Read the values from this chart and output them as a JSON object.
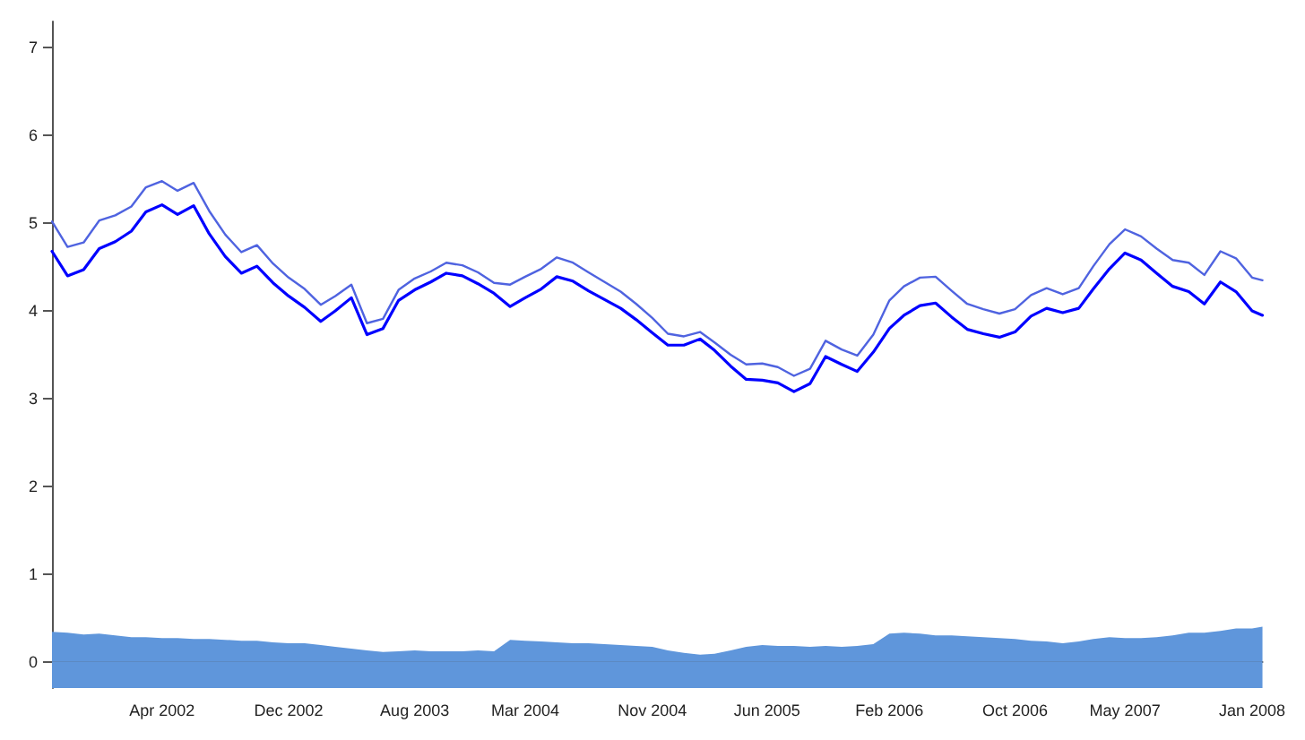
{
  "chart_data": {
    "type": "line",
    "x": [
      "2001-09-01",
      "2001-10-01",
      "2001-11-01",
      "2001-12-01",
      "2002-01-01",
      "2002-02-01",
      "2002-03-01",
      "2002-04-01",
      "2002-05-01",
      "2002-06-01",
      "2002-07-01",
      "2002-08-01",
      "2002-09-01",
      "2002-10-01",
      "2002-11-01",
      "2002-12-01",
      "2003-01-01",
      "2003-02-01",
      "2003-03-01",
      "2003-04-01",
      "2003-05-01",
      "2003-06-01",
      "2003-07-01",
      "2003-08-01",
      "2003-09-01",
      "2003-10-01",
      "2003-11-01",
      "2003-12-01",
      "2004-01-01",
      "2004-02-01",
      "2004-03-01",
      "2004-04-01",
      "2004-05-01",
      "2004-06-01",
      "2004-07-01",
      "2004-08-01",
      "2004-09-01",
      "2004-10-01",
      "2004-11-01",
      "2004-12-01",
      "2005-01-01",
      "2005-02-01",
      "2005-03-01",
      "2005-04-01",
      "2005-05-01",
      "2005-06-01",
      "2005-07-01",
      "2005-08-01",
      "2005-09-01",
      "2005-10-01",
      "2005-11-01",
      "2005-12-01",
      "2006-01-01",
      "2006-02-01",
      "2006-03-01",
      "2006-04-01",
      "2006-05-01",
      "2006-06-01",
      "2006-07-01",
      "2006-08-01",
      "2006-09-01",
      "2006-10-01",
      "2006-11-01",
      "2006-12-01",
      "2007-01-01",
      "2007-02-01",
      "2007-03-01",
      "2007-04-01",
      "2007-05-01",
      "2007-06-01",
      "2007-07-01",
      "2007-08-01",
      "2007-09-01",
      "2007-10-01",
      "2007-11-01",
      "2007-12-01",
      "2008-01-01",
      "2008-01-21"
    ],
    "series": [
      {
        "type": "area",
        "color": "#5f96db",
        "values": [
          0.34,
          0.33,
          0.31,
          0.32,
          0.3,
          0.28,
          0.28,
          0.27,
          0.27,
          0.26,
          0.26,
          0.25,
          0.24,
          0.24,
          0.22,
          0.21,
          0.21,
          0.19,
          0.17,
          0.15,
          0.13,
          0.11,
          0.12,
          0.13,
          0.12,
          0.12,
          0.12,
          0.13,
          0.12,
          0.25,
          0.24,
          0.23,
          0.22,
          0.21,
          0.21,
          0.2,
          0.19,
          0.18,
          0.17,
          0.13,
          0.1,
          0.08,
          0.09,
          0.13,
          0.17,
          0.19,
          0.18,
          0.18,
          0.17,
          0.18,
          0.17,
          0.18,
          0.2,
          0.32,
          0.33,
          0.32,
          0.3,
          0.3,
          0.29,
          0.28,
          0.27,
          0.26,
          0.24,
          0.23,
          0.21,
          0.23,
          0.26,
          0.28,
          0.27,
          0.27,
          0.28,
          0.3,
          0.33,
          0.33,
          0.35,
          0.38,
          0.38,
          0.4
        ]
      },
      {
        "color": "#4f63e0",
        "values": [
          5.02,
          4.73,
          4.78,
          5.03,
          5.09,
          5.19,
          5.41,
          5.48,
          5.37,
          5.46,
          5.14,
          4.87,
          4.67,
          4.75,
          4.54,
          4.38,
          4.25,
          4.07,
          4.17,
          4.3,
          3.86,
          3.91,
          4.24,
          4.37,
          4.45,
          4.55,
          4.52,
          4.44,
          4.32,
          4.3,
          4.39,
          4.48,
          4.61,
          4.55,
          4.44,
          4.33,
          4.22,
          4.08,
          3.92,
          3.74,
          3.71,
          3.76,
          3.64,
          3.5,
          3.39,
          3.4,
          3.36,
          3.26,
          3.34,
          3.66,
          3.56,
          3.49,
          3.73,
          4.12,
          4.28,
          4.38,
          4.39,
          4.23,
          4.08,
          4.02,
          3.97,
          4.02,
          4.18,
          4.26,
          4.19,
          4.26,
          4.51,
          4.76,
          4.93,
          4.85,
          4.71,
          4.58,
          4.55,
          4.41,
          4.68,
          4.6,
          4.38,
          4.35
        ]
      },
      {
        "color": "#0000ff",
        "values": [
          4.68,
          4.4,
          4.47,
          4.71,
          4.79,
          4.91,
          5.13,
          5.21,
          5.1,
          5.2,
          4.88,
          4.62,
          4.43,
          4.51,
          4.32,
          4.17,
          4.04,
          3.88,
          4.0,
          4.15,
          3.73,
          3.8,
          4.12,
          4.24,
          4.33,
          4.43,
          4.4,
          4.31,
          4.2,
          4.05,
          4.15,
          4.25,
          4.39,
          4.34,
          4.23,
          4.13,
          4.03,
          3.9,
          3.75,
          3.61,
          3.61,
          3.68,
          3.55,
          3.37,
          3.22,
          3.21,
          3.18,
          3.08,
          3.17,
          3.48,
          3.39,
          3.31,
          3.53,
          3.8,
          3.95,
          4.06,
          4.09,
          3.93,
          3.79,
          3.74,
          3.7,
          3.76,
          3.94,
          4.03,
          3.98,
          4.03,
          4.25,
          4.48,
          4.66,
          4.58,
          4.43,
          4.28,
          4.22,
          4.08,
          4.33,
          4.22,
          4.0,
          3.95
        ]
      }
    ],
    "xlim": [
      "2001-09-01",
      "2008-01-21"
    ],
    "xticks": [
      {
        "value": "2001-09-01",
        "label": null
      },
      {
        "value": "2002-04-01",
        "label": "Apr 2002"
      },
      {
        "value": "2002-12-01",
        "label": "Dec 2002"
      },
      {
        "value": "2003-08-01",
        "label": "Aug 2003"
      },
      {
        "value": "2004-03-01",
        "label": "Mar 2004"
      },
      {
        "value": "2004-11-01",
        "label": "Nov 2004"
      },
      {
        "value": "2005-06-10",
        "label": "Jun 2005"
      },
      {
        "value": "2006-02-01",
        "label": "Feb 2006"
      },
      {
        "value": "2006-10-01",
        "label": "Oct 2006"
      },
      {
        "value": "2007-05-01",
        "label": "May 2007"
      },
      {
        "value": "2008-01-01",
        "label": "Jan 2008"
      }
    ],
    "ylim": [
      -0.3,
      7.3
    ],
    "yticks": [
      0,
      1,
      2,
      3,
      4,
      5,
      6,
      7
    ],
    "bands": [
      {
        "axis": "y",
        "from": -0.3,
        "to": 0,
        "color": "#5f96db"
      }
    ],
    "grid": false,
    "marker": "none",
    "line_style": "solid"
  }
}
